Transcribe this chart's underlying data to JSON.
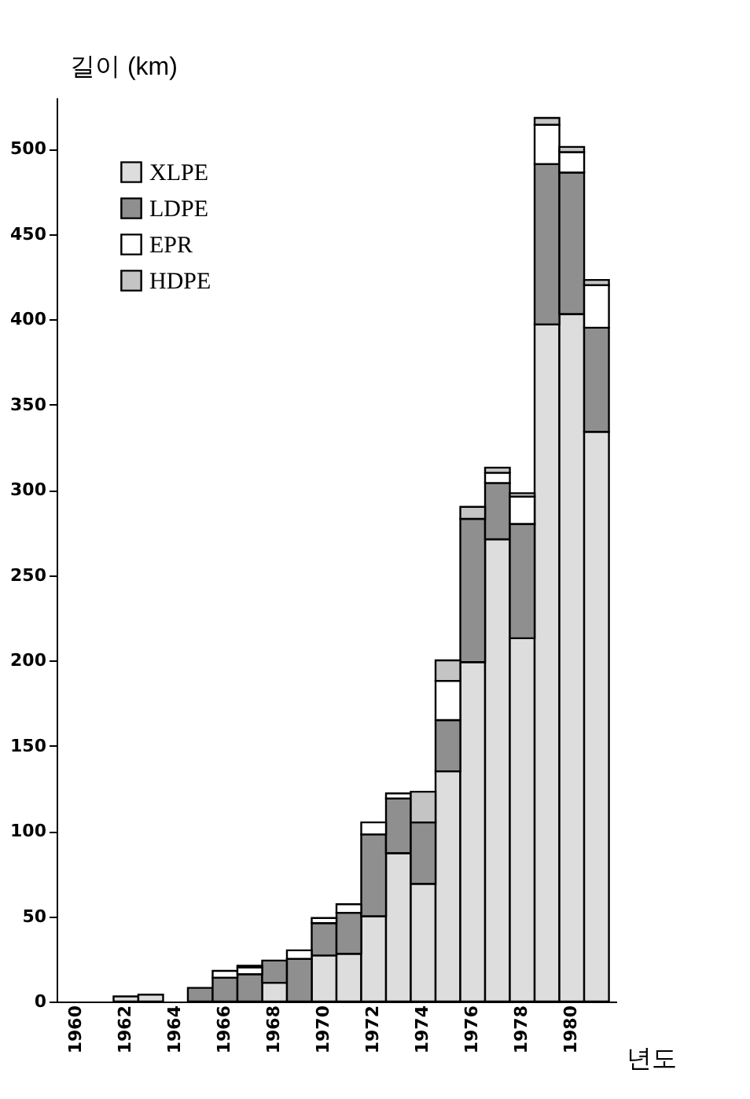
{
  "chart_data": {
    "type": "bar",
    "stacked": true,
    "ylabel": "길이 (km)",
    "xlabel": "년도",
    "categories": [
      "1960",
      null,
      "1962",
      null,
      "1964",
      null,
      "1966",
      null,
      "1968",
      null,
      "1970",
      null,
      "1972",
      null,
      "1974",
      null,
      "1976",
      null,
      "1978",
      null,
      "1980",
      null
    ],
    "series": [
      {
        "name": "XLPE",
        "color": "#dddddd",
        "values": [
          null,
          null,
          3,
          4,
          null,
          null,
          null,
          null,
          11,
          null,
          27,
          28,
          50,
          87,
          69,
          135,
          199,
          271,
          213,
          397,
          403,
          334
        ]
      },
      {
        "name": "LDPE",
        "color": "#8f8f8f",
        "values": [
          null,
          null,
          null,
          null,
          null,
          8,
          14,
          16,
          13,
          25,
          19,
          24,
          48,
          32,
          36,
          30,
          84,
          33,
          67,
          94,
          83,
          61
        ]
      },
      {
        "name": "EPR",
        "color": "#ffffff",
        "values": [
          null,
          null,
          null,
          null,
          null,
          null,
          4,
          4,
          null,
          5,
          3,
          5,
          7,
          3,
          null,
          23,
          null,
          6,
          16,
          23,
          12,
          25
        ]
      },
      {
        "name": "HDPE",
        "color": "#c4c4c4",
        "values": [
          null,
          null,
          null,
          null,
          null,
          null,
          null,
          1,
          null,
          null,
          null,
          null,
          null,
          null,
          18,
          12,
          7,
          3,
          2,
          4,
          3,
          3
        ]
      }
    ],
    "ylim": [
      0,
      530
    ],
    "yticks": [
      0,
      50,
      100,
      150,
      200,
      250,
      300,
      350,
      400,
      450,
      500
    ],
    "grid": false,
    "legend": "top left"
  }
}
